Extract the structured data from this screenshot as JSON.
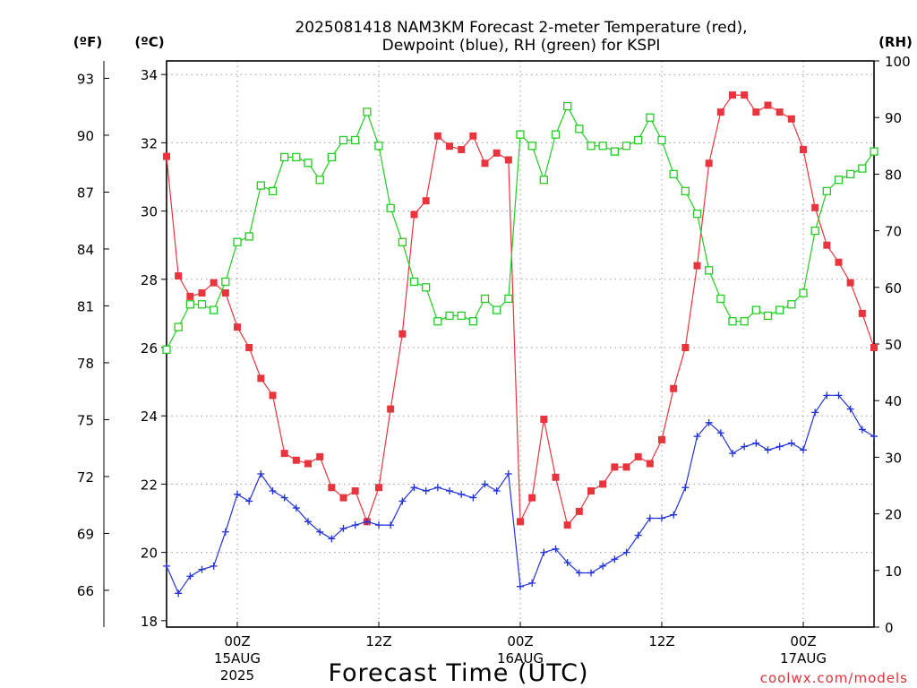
{
  "chart_data": {
    "type": "line",
    "title_line1": "2025081418 NAM3KM Forecast 2-meter Temperature (red),",
    "title_line2": "Dewpoint (blue), RH (green) for KSPI",
    "xlabel": "Forecast Time (UTC)",
    "credit": "coolwx.com/models",
    "units": {
      "fahrenheit": "(ºF)",
      "celsius": "(ºC)",
      "rh": "(RH)"
    },
    "x_range_hours": [
      -6,
      54
    ],
    "x_ticks": [
      {
        "hour": 0,
        "line1": "00Z",
        "line2": "15AUG",
        "line3": "2025"
      },
      {
        "hour": 12,
        "line1": "12Z",
        "line2": "",
        "line3": ""
      },
      {
        "hour": 24,
        "line1": "00Z",
        "line2": "16AUG",
        "line3": ""
      },
      {
        "hour": 36,
        "line1": "12Z",
        "line2": "",
        "line3": ""
      },
      {
        "hour": 48,
        "line1": "00Z",
        "line2": "17AUG",
        "line3": ""
      }
    ],
    "ylim_celsius": [
      17.9,
      34.2
    ],
    "celsius_ticks": [
      18,
      20,
      22,
      24,
      26,
      28,
      30,
      32,
      34
    ],
    "fahrenheit_ticks": [
      66,
      69,
      72,
      75,
      78,
      81,
      84,
      87,
      90,
      93
    ],
    "ylim_rh": [
      0,
      100
    ],
    "rh_ticks": [
      0,
      10,
      20,
      30,
      40,
      50,
      60,
      70,
      80,
      90,
      100
    ],
    "grid": true,
    "series": [
      {
        "name": "Temperature",
        "unit": "C",
        "color": "#e8353d",
        "marker": "filled-square",
        "x": [
          -6,
          -5,
          -4,
          -3,
          -2,
          -1,
          0,
          1,
          2,
          3,
          4,
          5,
          6,
          7,
          8,
          9,
          10,
          11,
          12,
          13,
          14,
          15,
          16,
          17,
          18,
          19,
          20,
          21,
          22,
          23,
          24,
          25,
          26,
          27,
          28,
          29,
          30,
          31,
          32,
          33,
          34,
          35,
          36,
          37,
          38,
          39,
          40,
          41,
          42,
          43,
          44,
          45,
          46,
          47,
          48,
          49,
          50,
          51,
          52,
          53,
          54
        ],
        "values": [
          31.6,
          28.1,
          27.5,
          27.6,
          27.9,
          27.6,
          26.6,
          26.0,
          25.1,
          24.6,
          22.9,
          22.7,
          22.6,
          22.8,
          21.9,
          21.6,
          21.8,
          20.9,
          21.9,
          24.2,
          26.4,
          29.9,
          30.3,
          32.2,
          31.9,
          31.8,
          32.2,
          31.4,
          31.7,
          31.5,
          20.9,
          21.6,
          23.9,
          22.2,
          20.8,
          21.2,
          21.8,
          22.0,
          22.5,
          22.5,
          22.8,
          22.6,
          23.3,
          24.8,
          26.0,
          28.4,
          31.4,
          32.9,
          33.4,
          33.4,
          32.9,
          33.1,
          32.9,
          32.7,
          31.8,
          30.1,
          29.0,
          28.5,
          27.9,
          27.0,
          26.0
        ]
      },
      {
        "name": "Dewpoint",
        "unit": "C",
        "color": "#2233d8",
        "marker": "plus",
        "x": [
          -6,
          -5,
          -4,
          -3,
          -2,
          -1,
          0,
          1,
          2,
          3,
          4,
          5,
          6,
          7,
          8,
          9,
          10,
          11,
          12,
          13,
          14,
          15,
          16,
          17,
          18,
          19,
          20,
          21,
          22,
          23,
          24,
          25,
          26,
          27,
          28,
          29,
          30,
          31,
          32,
          33,
          34,
          35,
          36,
          37,
          38,
          39,
          40,
          41,
          42,
          43,
          44,
          45,
          46,
          47,
          48,
          49,
          50,
          51,
          52,
          53,
          54
        ],
        "values": [
          19.6,
          18.8,
          19.3,
          19.5,
          19.6,
          20.6,
          21.7,
          21.5,
          22.3,
          21.8,
          21.6,
          21.3,
          20.9,
          20.6,
          20.4,
          20.7,
          20.8,
          20.9,
          20.8,
          20.8,
          21.5,
          21.9,
          21.8,
          21.9,
          21.8,
          21.7,
          21.6,
          22.0,
          21.8,
          22.3,
          19.0,
          19.1,
          20.0,
          20.1,
          19.7,
          19.4,
          19.4,
          19.6,
          19.8,
          20.0,
          20.5,
          21.0,
          21.0,
          21.1,
          21.9,
          23.4,
          23.8,
          23.5,
          22.9,
          23.1,
          23.2,
          23.0,
          23.1,
          23.2,
          23.0,
          24.1,
          24.6,
          24.6,
          24.2,
          23.6,
          23.4
        ]
      },
      {
        "name": "RH",
        "unit": "%",
        "color": "#22cc22",
        "marker": "open-square",
        "x": [
          -6,
          -5,
          -4,
          -3,
          -2,
          -1,
          0,
          1,
          2,
          3,
          4,
          5,
          6,
          7,
          8,
          9,
          10,
          11,
          12,
          13,
          14,
          15,
          16,
          17,
          18,
          19,
          20,
          21,
          22,
          23,
          24,
          25,
          26,
          27,
          28,
          29,
          30,
          31,
          32,
          33,
          34,
          35,
          36,
          37,
          38,
          39,
          40,
          41,
          42,
          43,
          44,
          45,
          46,
          47,
          48,
          49,
          50,
          51,
          52,
          53,
          54
        ],
        "values": [
          49,
          53,
          57,
          57,
          56,
          61,
          68,
          69,
          78,
          77,
          83,
          83,
          82,
          79,
          83,
          86,
          86,
          91,
          85,
          74,
          68,
          61,
          60,
          54,
          55,
          55,
          54,
          58,
          56,
          58,
          87,
          85,
          79,
          87,
          92,
          88,
          85,
          85,
          84,
          85,
          86,
          90,
          86,
          80,
          77,
          73,
          63,
          58,
          54,
          54,
          56,
          55,
          56,
          57,
          59,
          70,
          77,
          79,
          80,
          81,
          84
        ]
      }
    ]
  }
}
